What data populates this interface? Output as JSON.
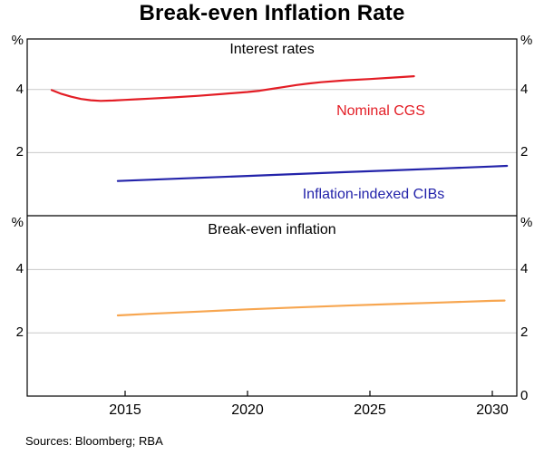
{
  "chart_data": {
    "type": "line",
    "title": "Break-even Inflation Rate",
    "source_note": "Sources: Bloomberg; RBA",
    "xlim": [
      2011,
      2031
    ],
    "x_ticks": [
      2015,
      2020,
      2025,
      2030
    ],
    "baseline_label": "0",
    "grid": true,
    "grid_color": "#c9c9c9",
    "frame_color": "#000000",
    "legend_position": "inline-labels",
    "panels": [
      {
        "title": "Interest rates",
        "unit": "%",
        "ylim": [
          0,
          5.6
        ],
        "yticks": [
          2,
          4
        ],
        "series": [
          {
            "name": "Nominal CGS",
            "color": "#e31d25",
            "x": [
              2012,
              2012.4,
              2012.8,
              2013.2,
              2013.6,
              2014,
              2014.5,
              2015,
              2015.5,
              2016,
              2017,
              2018,
              2019,
              2020,
              2020.5,
              2021,
              2021.5,
              2022,
              2022.5,
              2023,
              2024,
              2025,
              2026,
              2026.8
            ],
            "values": [
              3.98,
              3.86,
              3.77,
              3.7,
              3.66,
              3.64,
              3.65,
              3.67,
              3.69,
              3.71,
              3.75,
              3.8,
              3.86,
              3.92,
              3.96,
              4.02,
              4.08,
              4.14,
              4.19,
              4.23,
              4.29,
              4.33,
              4.38,
              4.42
            ]
          },
          {
            "name": "Inflation-indexed CIBs",
            "color": "#2323aa",
            "x": [
              2014.7,
              2016,
              2018,
              2020,
              2022,
              2024,
              2026,
              2028,
              2030,
              2030.6
            ],
            "values": [
              1.1,
              1.14,
              1.2,
              1.26,
              1.32,
              1.38,
              1.44,
              1.5,
              1.56,
              1.58
            ]
          }
        ]
      },
      {
        "title": "Break-even inflation",
        "unit": "%",
        "ylim": [
          0,
          5.7
        ],
        "yticks": [
          2,
          4
        ],
        "series": [
          {
            "name": "Break-even inflation rate",
            "color": "#f7a650",
            "x": [
              2014.7,
              2016,
              2018,
              2020,
              2022,
              2024,
              2026,
              2028,
              2030,
              2030.5
            ],
            "values": [
              2.55,
              2.6,
              2.67,
              2.74,
              2.8,
              2.86,
              2.91,
              2.96,
              3.01,
              3.02
            ]
          }
        ]
      }
    ]
  }
}
